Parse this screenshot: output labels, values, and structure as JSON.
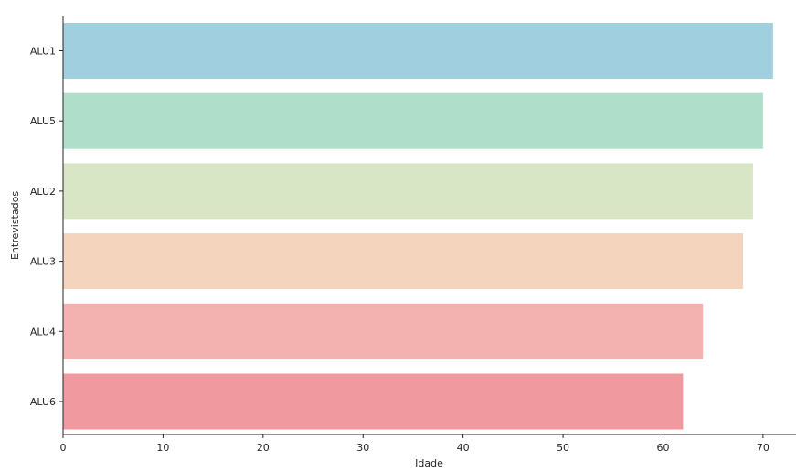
{
  "chart_data": {
    "type": "bar",
    "orientation": "horizontal",
    "title": "",
    "xlabel": "Idade",
    "ylabel": "Entrevistados",
    "categories": [
      "ALU1",
      "ALU5",
      "ALU2",
      "ALU3",
      "ALU4",
      "ALU6"
    ],
    "values": [
      71,
      70,
      69,
      68,
      64,
      62
    ],
    "colors": [
      "#a0cfe0",
      "#afdecb",
      "#d9e6c6",
      "#f4d4bc",
      "#f3b2b0",
      "#f09a9f"
    ],
    "xlim": [
      0,
      73.3
    ],
    "xticks": [
      0,
      10,
      20,
      30,
      40,
      50,
      60,
      70
    ],
    "grid": false,
    "legend": "none"
  }
}
